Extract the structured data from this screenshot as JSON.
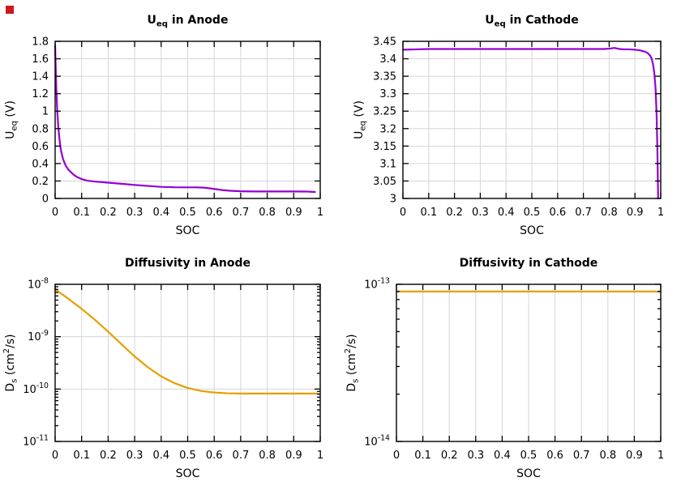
{
  "page": {
    "background": "#ffffff",
    "marker_color": "#cb1b1c"
  },
  "chart_data": [
    {
      "name": "ueq-anode",
      "type": "line",
      "title": "U_eq in Anode",
      "title_parts": [
        {
          "t": "U"
        },
        {
          "t": "eq",
          "sub": true
        },
        {
          "t": " in Anode"
        }
      ],
      "xlabel": "SOC",
      "ylabel": "U_eq (V)",
      "ylabel_parts": [
        {
          "t": "U"
        },
        {
          "t": "eq",
          "sub": true
        },
        {
          "t": " (V)"
        }
      ],
      "line_color": "#9400d3",
      "grid": true,
      "xlim": [
        0,
        1
      ],
      "xticks": [
        "0",
        "0.1",
        "0.2",
        "0.3",
        "0.4",
        "0.5",
        "0.6",
        "0.7",
        "0.8",
        "0.9",
        "1"
      ],
      "yscale": "linear",
      "ylim": [
        0,
        1.8
      ],
      "yticks": [
        "0",
        "0.2",
        "0.4",
        "0.6",
        "0.8",
        "1",
        "1.2",
        "1.4",
        "1.6",
        "1.8"
      ],
      "x": [
        0,
        0.004,
        0.008,
        0.012,
        0.017,
        0.022,
        0.03,
        0.04,
        0.05,
        0.06,
        0.07,
        0.08,
        0.09,
        0.1,
        0.12,
        0.15,
        0.18,
        0.2,
        0.25,
        0.3,
        0.35,
        0.4,
        0.45,
        0.5,
        0.53,
        0.56,
        0.58,
        0.6,
        0.63,
        0.66,
        0.7,
        0.75,
        0.8,
        0.85,
        0.9,
        0.95,
        0.98
      ],
      "y": [
        1.75,
        1.3,
        1.0,
        0.82,
        0.66,
        0.55,
        0.45,
        0.375,
        0.33,
        0.3,
        0.272,
        0.25,
        0.235,
        0.222,
        0.205,
        0.193,
        0.186,
        0.181,
        0.168,
        0.155,
        0.143,
        0.133,
        0.128,
        0.127,
        0.127,
        0.124,
        0.117,
        0.109,
        0.096,
        0.088,
        0.082,
        0.08,
        0.08,
        0.08,
        0.08,
        0.079,
        0.074
      ]
    },
    {
      "name": "ueq-cathode",
      "type": "line",
      "title": "U_eq in Cathode",
      "title_parts": [
        {
          "t": "U"
        },
        {
          "t": "eq",
          "sub": true
        },
        {
          "t": " in Cathode"
        }
      ],
      "xlabel": "SOC",
      "ylabel": "U_eq (V)",
      "ylabel_parts": [
        {
          "t": "U"
        },
        {
          "t": "eq",
          "sub": true
        },
        {
          "t": " (V)"
        }
      ],
      "line_color": "#9400d3",
      "grid": true,
      "xlim": [
        0,
        1
      ],
      "xticks": [
        "0",
        "0.1",
        "0.2",
        "0.3",
        "0.4",
        "0.5",
        "0.6",
        "0.7",
        "0.8",
        "0.9",
        "1"
      ],
      "yscale": "linear",
      "ylim": [
        3,
        3.45
      ],
      "yticks": [
        "3",
        "3.05",
        "3.1",
        "3.15",
        "3.2",
        "3.25",
        "3.3",
        "3.35",
        "3.4",
        "3.45"
      ],
      "x": [
        0,
        0.05,
        0.1,
        0.2,
        0.3,
        0.4,
        0.5,
        0.6,
        0.7,
        0.78,
        0.8,
        0.82,
        0.84,
        0.86,
        0.88,
        0.9,
        0.92,
        0.94,
        0.95,
        0.96,
        0.965,
        0.97,
        0.975,
        0.98,
        0.984,
        0.987,
        0.99
      ],
      "y": [
        3.426,
        3.427,
        3.428,
        3.428,
        3.428,
        3.428,
        3.428,
        3.428,
        3.428,
        3.428,
        3.429,
        3.431,
        3.428,
        3.427,
        3.427,
        3.426,
        3.424,
        3.42,
        3.416,
        3.408,
        3.4,
        3.385,
        3.36,
        3.315,
        3.24,
        3.14,
        3.0
      ]
    },
    {
      "name": "diffusivity-anode",
      "type": "line",
      "title": "Diffusivity in Anode",
      "title_parts": [
        {
          "t": "Diffusivity in Anode"
        }
      ],
      "xlabel": "SOC",
      "ylabel": "D_s (cm^2/s)",
      "ylabel_parts": [
        {
          "t": "D"
        },
        {
          "t": "s",
          "sub": true
        },
        {
          "t": " (cm"
        },
        {
          "t": "2",
          "sup": true
        },
        {
          "t": "/s)"
        }
      ],
      "line_color": "#e69f00",
      "grid": true,
      "xlim": [
        0,
        1
      ],
      "xticks": [
        "0",
        "0.1",
        "0.2",
        "0.3",
        "0.4",
        "0.5",
        "0.6",
        "0.7",
        "0.8",
        "0.9",
        "1"
      ],
      "yscale": "log",
      "ylim_exp": [
        -11,
        -8
      ],
      "yticks_log": [
        {
          "v": -11,
          "parts": [
            {
              "t": "10"
            },
            {
              "t": "-11",
              "sup": true
            }
          ]
        },
        {
          "v": -10,
          "parts": [
            {
              "t": "10"
            },
            {
              "t": "-10",
              "sup": true
            }
          ]
        },
        {
          "v": -9,
          "parts": [
            {
              "t": "10"
            },
            {
              "t": "-9",
              "sup": true
            }
          ]
        },
        {
          "v": -8,
          "parts": [
            {
              "t": "10"
            },
            {
              "t": "-8",
              "sup": true
            }
          ]
        }
      ],
      "x": [
        0,
        0.05,
        0.1,
        0.15,
        0.2,
        0.25,
        0.3,
        0.35,
        0.4,
        0.45,
        0.5,
        0.55,
        0.6,
        0.65,
        0.7,
        0.8,
        0.9,
        0.99
      ],
      "y": [
        8e-09,
        5.3e-09,
        3.4e-09,
        2.1e-09,
        1.25e-09,
        7.2e-10,
        4.2e-10,
        2.6e-10,
        1.75e-10,
        1.3e-10,
        1.05e-10,
        9.2e-11,
        8.6e-11,
        8.3e-11,
        8.2e-11,
        8.2e-11,
        8.2e-11,
        8.2e-11
      ]
    },
    {
      "name": "diffusivity-cathode",
      "type": "line",
      "title": "Diffusivity in Cathode",
      "title_parts": [
        {
          "t": "Diffusivity in Cathode"
        }
      ],
      "xlabel": "SOC",
      "ylabel": "D_s (cm^2/s)",
      "ylabel_parts": [
        {
          "t": "D"
        },
        {
          "t": "s",
          "sub": true
        },
        {
          "t": " (cm"
        },
        {
          "t": "2",
          "sup": true
        },
        {
          "t": "/s)"
        }
      ],
      "line_color": "#e69f00",
      "grid": true,
      "xlim": [
        0,
        1
      ],
      "xticks": [
        "0",
        "0.1",
        "0.2",
        "0.3",
        "0.4",
        "0.5",
        "0.6",
        "0.7",
        "0.8",
        "0.9",
        "1"
      ],
      "yscale": "log",
      "ylim_exp": [
        -14,
        -13
      ],
      "yticks_log": [
        {
          "v": -14,
          "parts": [
            {
              "t": "10"
            },
            {
              "t": "-14",
              "sup": true
            }
          ]
        },
        {
          "v": -13,
          "parts": [
            {
              "t": "10"
            },
            {
              "t": "-13",
              "sup": true
            }
          ]
        }
      ],
      "x": [
        0,
        1
      ],
      "y": [
        9e-14,
        9e-14
      ]
    }
  ]
}
